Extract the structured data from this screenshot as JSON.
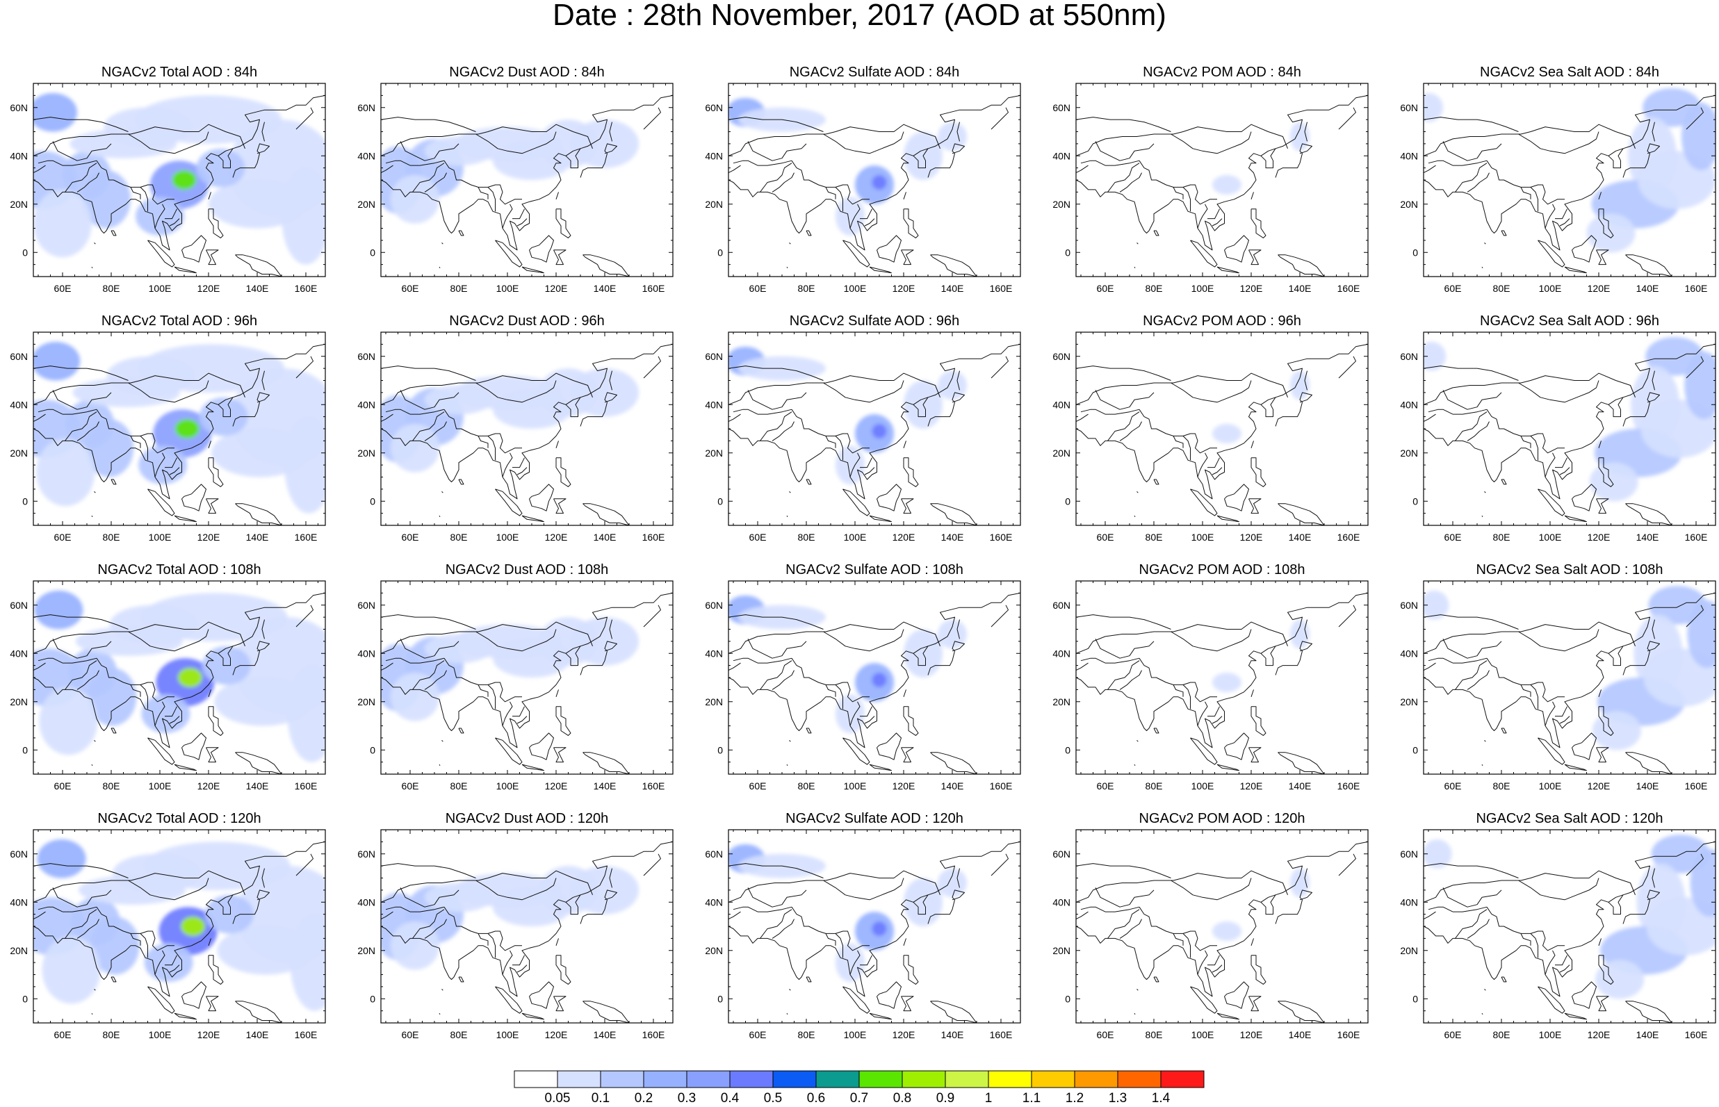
{
  "title": "Date : 28th November, 2017 (AOD at 550nm)",
  "axes": {
    "x_ticks": [
      "60E",
      "80E",
      "100E",
      "120E",
      "140E",
      "160E"
    ],
    "x_values": [
      60,
      80,
      100,
      120,
      140,
      160
    ],
    "y_ticks": [
      "60N",
      "40N",
      "20N",
      "0"
    ],
    "y_values": [
      60,
      40,
      20,
      0
    ],
    "lon_range": [
      48,
      168
    ],
    "lat_range": [
      -10,
      70
    ]
  },
  "panels": [
    {
      "title": "NGACv2 Total AOD : 84h",
      "species": "total",
      "lead": "84h"
    },
    {
      "title": "NGACv2 Dust AOD : 84h",
      "species": "dust",
      "lead": "84h"
    },
    {
      "title": "NGACv2 Sulfate AOD : 84h",
      "species": "sulfate",
      "lead": "84h"
    },
    {
      "title": "NGACv2 POM AOD : 84h",
      "species": "pom",
      "lead": "84h"
    },
    {
      "title": "NGACv2 Sea Salt AOD : 84h",
      "species": "seasalt",
      "lead": "84h"
    },
    {
      "title": "NGACv2 Total AOD : 96h",
      "species": "total",
      "lead": "96h"
    },
    {
      "title": "NGACv2 Dust AOD : 96h",
      "species": "dust",
      "lead": "96h"
    },
    {
      "title": "NGACv2 Sulfate AOD : 96h",
      "species": "sulfate",
      "lead": "96h"
    },
    {
      "title": "NGACv2 POM AOD : 96h",
      "species": "pom",
      "lead": "96h"
    },
    {
      "title": "NGACv2 Sea Salt AOD : 96h",
      "species": "seasalt",
      "lead": "96h"
    },
    {
      "title": "NGACv2 Total AOD : 108h",
      "species": "total",
      "lead": "108h"
    },
    {
      "title": "NGACv2 Dust AOD : 108h",
      "species": "dust",
      "lead": "108h"
    },
    {
      "title": "NGACv2 Sulfate AOD : 108h",
      "species": "sulfate",
      "lead": "108h"
    },
    {
      "title": "NGACv2 POM AOD : 108h",
      "species": "pom",
      "lead": "108h"
    },
    {
      "title": "NGACv2 Sea Salt AOD : 108h",
      "species": "seasalt",
      "lead": "108h"
    },
    {
      "title": "NGACv2 Total AOD : 120h",
      "species": "total",
      "lead": "120h"
    },
    {
      "title": "NGACv2 Dust AOD : 120h",
      "species": "dust",
      "lead": "120h"
    },
    {
      "title": "NGACv2 Sulfate AOD : 120h",
      "species": "sulfate",
      "lead": "120h"
    },
    {
      "title": "NGACv2 POM AOD : 120h",
      "species": "pom",
      "lead": "120h"
    },
    {
      "title": "NGACv2 Sea Salt  AOD : 120h",
      "species": "seasalt",
      "lead": "120h"
    }
  ],
  "colorbar": {
    "labels": [
      "0.05",
      "0.1",
      "0.2",
      "0.3",
      "0.4",
      "0.5",
      "0.6",
      "0.7",
      "0.8",
      "0.9",
      "1",
      "1.1",
      "1.2",
      "1.3",
      "1.4"
    ],
    "colors": [
      "#ffffff",
      "#d6e1ff",
      "#b4c8ff",
      "#96b1ff",
      "#8aa0ff",
      "#6b7bff",
      "#0a5cf5",
      "#0b9b8f",
      "#5ae600",
      "#9ff000",
      "#cdf545",
      "#ffff00",
      "#ffcc00",
      "#ff9900",
      "#ff6600",
      "#ff1a1a"
    ]
  }
}
